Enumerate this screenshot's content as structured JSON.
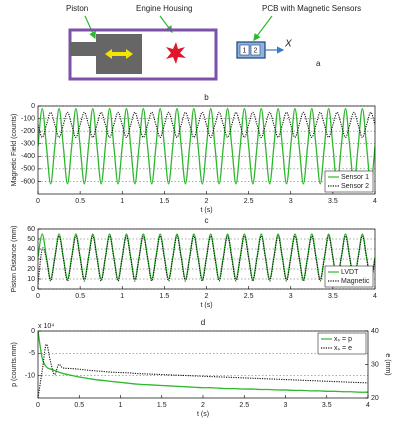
{
  "diagram": {
    "piston": "Piston",
    "housing": "Engine Housing",
    "pcb": "PCB with Magnetic Sensors",
    "sensors": [
      "1",
      "2"
    ],
    "axis": "X",
    "panel": "a"
  },
  "chart_data": [
    {
      "type": "line",
      "title": "b",
      "xlabel": "t (s)",
      "ylabel": "Magnetic Field (counts)",
      "grid": true,
      "legend": "lower right",
      "xlim": [
        0,
        4
      ],
      "xticks": [
        0,
        0.5,
        1,
        1.5,
        2,
        2.5,
        3,
        3.5,
        4
      ],
      "ylim": [
        -700,
        0
      ],
      "yticks": [
        -600,
        -500,
        -400,
        -300,
        -200,
        -100,
        0
      ],
      "x": [
        0,
        0.05,
        0.1,
        0.15,
        0.2,
        0.25,
        0.3,
        0.35,
        0.4,
        0.45,
        0.5,
        0.55,
        0.6,
        0.65,
        0.7,
        0.75,
        0.8,
        0.85,
        0.9,
        0.95,
        1,
        1.05,
        1.1,
        1.15,
        1.2,
        1.25,
        1.3,
        1.35,
        1.4,
        1.45,
        1.5,
        1.55,
        1.6,
        1.65,
        1.7,
        1.75,
        1.8,
        1.85,
        1.9,
        1.95,
        2,
        2.05,
        2.1,
        2.15,
        2.2,
        2.25,
        2.3,
        2.35,
        2.4,
        2.45,
        2.5,
        2.55,
        2.6,
        2.65,
        2.7,
        2.75,
        2.8,
        2.85,
        2.9,
        2.95,
        3,
        3.05,
        3.1,
        3.15,
        3.2,
        3.25,
        3.3,
        3.35,
        3.4,
        3.45,
        3.5,
        3.55,
        3.6,
        3.65,
        3.7,
        3.75,
        3.8,
        3.85,
        3.9,
        3.95,
        4
      ],
      "series": [
        {
          "name": "Sensor 1",
          "color": "#2db82d",
          "style": "solid",
          "values": [
            -320,
            -20,
            -320,
            -620,
            -320,
            -20,
            -320,
            -620,
            -320,
            -20,
            -320,
            -620,
            -320,
            -20,
            -320,
            -620,
            -320,
            -20,
            -320,
            -620,
            -320,
            -20,
            -320,
            -620,
            -320,
            -20,
            -320,
            -620,
            -320,
            -20,
            -320,
            -620,
            -320,
            -20,
            -320,
            -620,
            -320,
            -20,
            -320,
            -620,
            -320,
            -20,
            -320,
            -620,
            -320,
            -20,
            -320,
            -620,
            -320,
            -20,
            -320,
            -620,
            -320,
            -20,
            -320,
            -620,
            -320,
            -20,
            -320,
            -620,
            -320,
            -20,
            -320,
            -620,
            -320,
            -20,
            -320,
            -620,
            -320,
            -20,
            -320,
            -620,
            -320,
            -20,
            -320,
            -620,
            -320,
            -20,
            -320,
            -620,
            -320
          ]
        },
        {
          "name": "Sensor 2",
          "color": "#111111",
          "style": "dotted",
          "values": [
            -150,
            -250,
            -150,
            -50,
            -150,
            -250,
            -150,
            -50,
            -150,
            -250,
            -150,
            -50,
            -150,
            -250,
            -150,
            -50,
            -150,
            -250,
            -150,
            -50,
            -150,
            -250,
            -150,
            -50,
            -150,
            -250,
            -150,
            -50,
            -150,
            -250,
            -150,
            -50,
            -150,
            -250,
            -150,
            -50,
            -150,
            -250,
            -150,
            -50,
            -150,
            -250,
            -150,
            -50,
            -150,
            -250,
            -150,
            -50,
            -150,
            -250,
            -150,
            -50,
            -150,
            -250,
            -150,
            -50,
            -150,
            -250,
            -150,
            -50,
            -150,
            -250,
            -150,
            -50,
            -150,
            -250,
            -150,
            -50,
            -150,
            -250,
            -150,
            -50,
            -150,
            -250,
            -150,
            -50,
            -150,
            -250,
            -150,
            -50,
            -150
          ]
        }
      ]
    },
    {
      "type": "line",
      "title": "c",
      "xlabel": "t (s)",
      "ylabel": "Piston Distance (mm)",
      "grid": true,
      "legend": "lower right",
      "xlim": [
        0,
        4
      ],
      "xticks": [
        0,
        0.5,
        1,
        1.5,
        2,
        2.5,
        3,
        3.5,
        4
      ],
      "ylim": [
        0,
        60
      ],
      "yticks": [
        0,
        10,
        20,
        30,
        40,
        50,
        60
      ],
      "x": [
        0,
        0.05,
        0.1,
        0.15,
        0.2,
        0.25,
        0.3,
        0.35,
        0.4,
        0.45,
        0.5,
        0.55,
        0.6,
        0.65,
        0.7,
        0.75,
        0.8,
        0.85,
        0.9,
        0.95,
        1,
        1.05,
        1.1,
        1.15,
        1.2,
        1.25,
        1.3,
        1.35,
        1.4,
        1.45,
        1.5,
        1.55,
        1.6,
        1.65,
        1.7,
        1.75,
        1.8,
        1.85,
        1.9,
        1.95,
        2,
        2.05,
        2.1,
        2.15,
        2.2,
        2.25,
        2.3,
        2.35,
        2.4,
        2.45,
        2.5,
        2.55,
        2.6,
        2.65,
        2.7,
        2.75,
        2.8,
        2.85,
        2.9,
        2.95,
        3,
        3.05,
        3.1,
        3.15,
        3.2,
        3.25,
        3.3,
        3.35,
        3.4,
        3.45,
        3.5,
        3.55,
        3.6,
        3.65,
        3.7,
        3.75,
        3.8,
        3.85,
        3.9,
        3.95,
        4
      ],
      "series": [
        {
          "name": "LVDT",
          "color": "#2db82d",
          "style": "solid",
          "values": [
            32,
            55,
            32,
            10,
            32,
            55,
            32,
            10,
            32,
            55,
            32,
            10,
            32,
            55,
            32,
            10,
            32,
            55,
            32,
            10,
            32,
            55,
            32,
            10,
            32,
            55,
            32,
            10,
            32,
            55,
            32,
            10,
            32,
            55,
            32,
            10,
            32,
            55,
            32,
            10,
            32,
            55,
            32,
            10,
            32,
            55,
            32,
            10,
            32,
            55,
            32,
            10,
            32,
            55,
            32,
            10,
            32,
            55,
            32,
            10,
            32,
            55,
            32,
            10,
            32,
            55,
            32,
            10,
            32,
            55,
            32,
            10,
            32,
            55,
            32,
            10,
            32,
            55,
            32,
            10,
            32
          ]
        },
        {
          "name": "Magnetic",
          "color": "#111111",
          "style": "dotted",
          "values": [
            5,
            40,
            30,
            8,
            31,
            53,
            31,
            8,
            31,
            53,
            31,
            8,
            31,
            53,
            31,
            8,
            31,
            53,
            31,
            8,
            31,
            53,
            31,
            8,
            31,
            53,
            31,
            8,
            31,
            53,
            31,
            8,
            31,
            53,
            31,
            8,
            31,
            53,
            31,
            8,
            31,
            53,
            31,
            8,
            31,
            53,
            31,
            8,
            31,
            53,
            31,
            8,
            31,
            53,
            31,
            8,
            31,
            53,
            31,
            8,
            31,
            53,
            31,
            8,
            31,
            53,
            31,
            8,
            31,
            53,
            31,
            8,
            31,
            53,
            31,
            8,
            31,
            53,
            31,
            8,
            31
          ]
        }
      ]
    },
    {
      "type": "line",
      "title": "d",
      "xlabel": "t (s)",
      "ylabel": "p (counts.mm)",
      "y2label": "e (mm)",
      "yscale_label": "x 10⁴",
      "grid": true,
      "legend": "upper right",
      "xlim": [
        0,
        4
      ],
      "xticks": [
        0,
        0.5,
        1,
        1.5,
        2,
        2.5,
        3,
        3.5,
        4
      ],
      "ylim": [
        -15,
        0
      ],
      "yticks": [
        -10,
        -5,
        0
      ],
      "y2lim": [
        20,
        40
      ],
      "y2ticks": [
        20,
        30,
        40
      ],
      "x": [
        0,
        0.05,
        0.1,
        0.15,
        0.2,
        0.25,
        0.3,
        0.4,
        0.5,
        0.6,
        0.7,
        0.8,
        0.9,
        1,
        1.1,
        1.2,
        1.3,
        1.4,
        1.5,
        1.6,
        1.7,
        1.8,
        1.9,
        2,
        2.1,
        2.2,
        2.3,
        2.4,
        2.5,
        2.6,
        2.7,
        2.8,
        2.9,
        3,
        3.1,
        3.2,
        3.3,
        3.4,
        3.5,
        3.6,
        3.7,
        3.8,
        3.9,
        4
      ],
      "series": [
        {
          "name": "xₛ = p",
          "color": "#2db82d",
          "style": "solid",
          "values": [
            0,
            -6,
            -8,
            -8.5,
            -8.8,
            -9.2,
            -9.5,
            -9.9,
            -10.3,
            -10.6,
            -10.9,
            -11.1,
            -11.3,
            -11.5,
            -11.7,
            -11.9,
            -12.0,
            -12.1,
            -12.2,
            -12.3,
            -12.4,
            -12.5,
            -12.6,
            -12.7,
            -12.7,
            -12.8,
            -12.9,
            -12.9,
            -13.0,
            -13.0,
            -13.1,
            -13.1,
            -13.2,
            -13.2,
            -13.3,
            -13.3,
            -13.4,
            -13.4,
            -13.5,
            -13.5,
            -13.6,
            -13.6,
            -13.7,
            -13.7
          ]
        },
        {
          "name": "xₛ = e",
          "color": "#111111",
          "style": "dotted",
          "axis": "y2",
          "values": [
            20,
            28,
            36,
            31,
            27,
            30,
            29,
            28.8,
            28.6,
            28.3,
            28.1,
            27.9,
            27.7,
            27.6,
            27.5,
            27.3,
            27.2,
            27.1,
            27.0,
            26.9,
            26.8,
            26.7,
            26.6,
            26.5,
            26.4,
            26.3,
            26.2,
            26.1,
            26.0,
            25.9,
            25.8,
            25.7,
            25.6,
            25.5,
            25.4,
            25.3,
            25.2,
            25.1,
            25.0,
            24.9,
            24.8,
            24.7,
            24.6,
            24.5
          ]
        }
      ]
    }
  ]
}
